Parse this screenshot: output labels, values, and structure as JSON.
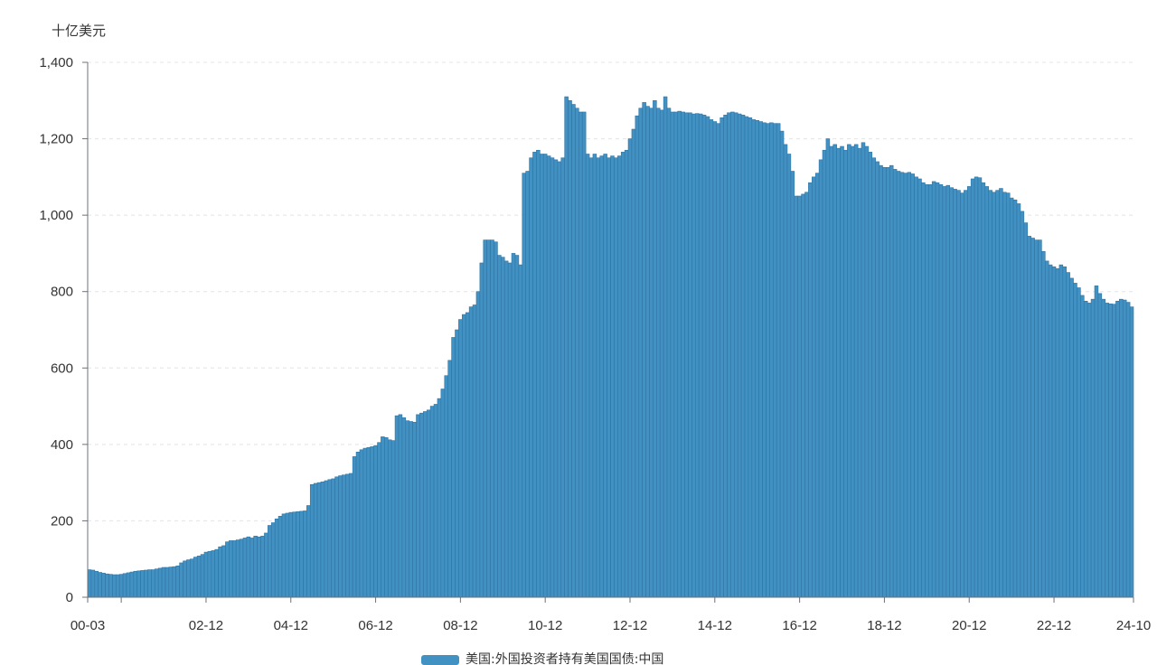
{
  "chart_data": {
    "type": "bar",
    "title": "",
    "xlabel": "",
    "ylabel": "十亿美元",
    "ylim": [
      0,
      1400
    ],
    "yticks": [
      0,
      200,
      400,
      600,
      800,
      1000,
      1200,
      1400
    ],
    "ytick_labels": [
      "0",
      "200",
      "400",
      "600",
      "800",
      "1,000",
      "1,200",
      "1,400"
    ],
    "xtick_labels": [
      "00-03",
      "02-12",
      "04-12",
      "06-12",
      "08-12",
      "10-12",
      "12-12",
      "14-12",
      "16-12",
      "18-12",
      "20-12",
      "22-12",
      "24-10"
    ],
    "grid": true,
    "legend": "bottom",
    "x": [
      "00-03",
      "00-04",
      "00-05",
      "00-06",
      "00-07",
      "00-08",
      "00-09",
      "00-10",
      "00-11",
      "00-12",
      "01-01",
      "01-02",
      "01-03",
      "01-04",
      "01-05",
      "01-06",
      "01-07",
      "01-08",
      "01-09",
      "01-10",
      "01-11",
      "01-12",
      "02-01",
      "02-02",
      "02-03",
      "02-04",
      "02-05",
      "02-06",
      "02-07",
      "02-08",
      "02-09",
      "02-10",
      "02-11",
      "02-12",
      "03-01",
      "03-02",
      "03-03",
      "03-04",
      "03-05",
      "03-06",
      "03-07",
      "03-08",
      "03-09",
      "03-10",
      "03-11",
      "03-12",
      "04-01",
      "04-02",
      "04-03",
      "04-04",
      "04-05",
      "04-06",
      "04-07",
      "04-08",
      "04-09",
      "04-10",
      "04-11",
      "04-12",
      "05-01",
      "05-02",
      "05-03",
      "05-04",
      "05-05",
      "05-06",
      "05-07",
      "05-08",
      "05-09",
      "05-10",
      "05-11",
      "05-12",
      "06-01",
      "06-02",
      "06-03",
      "06-04",
      "06-05",
      "06-06",
      "06-07",
      "06-08",
      "06-09",
      "06-10",
      "06-11",
      "06-12",
      "07-01",
      "07-02",
      "07-03",
      "07-04",
      "07-05",
      "07-06",
      "07-07",
      "07-08",
      "07-09",
      "07-10",
      "07-11",
      "07-12",
      "08-01",
      "08-02",
      "08-03",
      "08-04",
      "08-05",
      "08-06",
      "08-07",
      "08-08",
      "08-09",
      "08-10",
      "08-11",
      "08-12",
      "09-01",
      "09-02",
      "09-03",
      "09-04",
      "09-05",
      "09-06",
      "09-07",
      "09-08",
      "09-09",
      "09-10",
      "09-11",
      "09-12",
      "10-01",
      "10-02",
      "10-03",
      "10-04",
      "10-05",
      "10-06",
      "10-07",
      "10-08",
      "10-09",
      "10-10",
      "10-11",
      "10-12",
      "11-01",
      "11-02",
      "11-03",
      "11-04",
      "11-05",
      "11-06",
      "11-07",
      "11-08",
      "11-09",
      "11-10",
      "11-11",
      "11-12",
      "12-01",
      "12-02",
      "12-03",
      "12-04",
      "12-05",
      "12-06",
      "12-07",
      "12-08",
      "12-09",
      "12-10",
      "12-11",
      "12-12",
      "13-01",
      "13-02",
      "13-03",
      "13-04",
      "13-05",
      "13-06",
      "13-07",
      "13-08",
      "13-09",
      "13-10",
      "13-11",
      "13-12",
      "14-01",
      "14-02",
      "14-03",
      "14-04",
      "14-05",
      "14-06",
      "14-07",
      "14-08",
      "14-09",
      "14-10",
      "14-11",
      "14-12",
      "15-01",
      "15-02",
      "15-03",
      "15-04",
      "15-05",
      "15-06",
      "15-07",
      "15-08",
      "15-09",
      "15-10",
      "15-11",
      "15-12",
      "16-01",
      "16-02",
      "16-03",
      "16-04",
      "16-05",
      "16-06",
      "16-07",
      "16-08",
      "16-09",
      "16-10",
      "16-11",
      "16-12",
      "17-01",
      "17-02",
      "17-03",
      "17-04",
      "17-05",
      "17-06",
      "17-07",
      "17-08",
      "17-09",
      "17-10",
      "17-11",
      "17-12",
      "18-01",
      "18-02",
      "18-03",
      "18-04",
      "18-05",
      "18-06",
      "18-07",
      "18-08",
      "18-09",
      "18-10",
      "18-11",
      "18-12",
      "19-01",
      "19-02",
      "19-03",
      "19-04",
      "19-05",
      "19-06",
      "19-07",
      "19-08",
      "19-09",
      "19-10",
      "19-11",
      "19-12",
      "20-01",
      "20-02",
      "20-03",
      "20-04",
      "20-05",
      "20-06",
      "20-07",
      "20-08",
      "20-09",
      "20-10",
      "20-11",
      "20-12",
      "21-01",
      "21-02",
      "21-03",
      "21-04",
      "21-05",
      "21-06",
      "21-07",
      "21-08",
      "21-09",
      "21-10",
      "21-11",
      "21-12",
      "22-01",
      "22-02",
      "22-03",
      "22-04",
      "22-05",
      "22-06",
      "22-07",
      "22-08",
      "22-09",
      "22-10",
      "22-11",
      "22-12",
      "23-01",
      "23-02",
      "23-03",
      "23-04",
      "23-05",
      "23-06",
      "23-07",
      "23-08",
      "23-09",
      "23-10",
      "23-11",
      "23-12",
      "24-01",
      "24-02",
      "24-03",
      "24-04",
      "24-05",
      "24-06",
      "24-07",
      "24-08",
      "24-09",
      "24-10"
    ],
    "series": [
      {
        "name": "美国:外国投资者持有美国国债:中国",
        "color": "#4291c3",
        "stroke": "#2e74a4",
        "values": [
          72,
          71,
          68,
          65,
          63,
          61,
          60,
          59,
          59,
          60,
          62,
          64,
          66,
          68,
          69,
          70,
          71,
          72,
          72,
          74,
          76,
          78,
          78,
          79,
          80,
          82,
          90,
          95,
          98,
          100,
          105,
          108,
          112,
          118,
          120,
          122,
          125,
          132,
          135,
          145,
          148,
          148,
          150,
          152,
          155,
          158,
          155,
          160,
          158,
          160,
          168,
          188,
          195,
          205,
          212,
          218,
          220,
          222,
          223,
          224,
          225,
          226,
          240,
          295,
          298,
          300,
          302,
          305,
          308,
          310,
          315,
          318,
          320,
          322,
          324,
          368,
          380,
          386,
          390,
          392,
          394,
          397,
          405,
          420,
          418,
          412,
          410,
          475,
          478,
          470,
          462,
          460,
          458,
          478,
          482,
          486,
          490,
          500,
          505,
          520,
          545,
          580,
          620,
          680,
          700,
          727,
          740,
          745,
          760,
          765,
          800,
          875,
          935,
          935,
          935,
          930,
          895,
          890,
          880,
          875,
          900,
          895,
          870,
          1110,
          1115,
          1150,
          1165,
          1170,
          1160,
          1160,
          1155,
          1150,
          1145,
          1140,
          1150,
          1310,
          1300,
          1290,
          1280,
          1270,
          1270,
          1160,
          1150,
          1160,
          1150,
          1155,
          1160,
          1150,
          1155,
          1150,
          1155,
          1165,
          1170,
          1200,
          1225,
          1260,
          1280,
          1295,
          1285,
          1280,
          1300,
          1280,
          1275,
          1310,
          1280,
          1270,
          1270,
          1272,
          1270,
          1268,
          1268,
          1265,
          1266,
          1265,
          1262,
          1258,
          1250,
          1245,
          1240,
          1255,
          1262,
          1268,
          1270,
          1268,
          1265,
          1262,
          1258,
          1255,
          1250,
          1248,
          1245,
          1242,
          1240,
          1242,
          1240,
          1240,
          1220,
          1185,
          1160,
          1115,
          1050,
          1050,
          1055,
          1060,
          1085,
          1100,
          1110,
          1145,
          1170,
          1200,
          1180,
          1185,
          1175,
          1180,
          1170,
          1185,
          1180,
          1185,
          1175,
          1190,
          1180,
          1165,
          1150,
          1140,
          1130,
          1125,
          1125,
          1130,
          1120,
          1115,
          1112,
          1110,
          1112,
          1108,
          1100,
          1095,
          1085,
          1080,
          1080,
          1088,
          1085,
          1080,
          1075,
          1078,
          1072,
          1068,
          1065,
          1058,
          1065,
          1075,
          1095,
          1100,
          1098,
          1085,
          1075,
          1065,
          1060,
          1065,
          1070,
          1060,
          1058,
          1045,
          1040,
          1030,
          1010,
          980,
          945,
          940,
          935,
          935,
          905,
          880,
          870,
          865,
          860,
          870,
          865,
          850,
          835,
          822,
          810,
          790,
          775,
          770,
          780,
          815,
          795,
          780,
          770,
          768,
          767,
          775,
          780,
          778,
          772,
          760
        ]
      }
    ]
  }
}
